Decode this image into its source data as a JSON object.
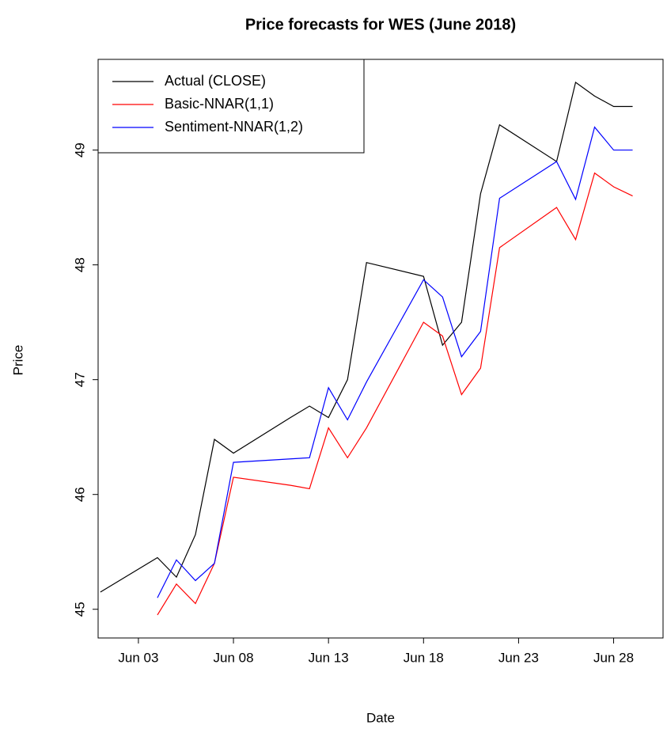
{
  "chart_data": {
    "type": "line",
    "title": "Price forecasts for WES (June 2018)",
    "x_label": "Date",
    "y_label": "Price",
    "x": [
      1,
      4,
      5,
      6,
      7,
      8,
      11,
      12,
      13,
      14,
      15,
      18,
      19,
      20,
      21,
      22,
      25,
      26,
      27,
      28,
      29
    ],
    "series": [
      {
        "name": "Actual (CLOSE)",
        "color": "#000000",
        "values": [
          45.15,
          45.45,
          45.28,
          45.65,
          46.48,
          46.36,
          46.67,
          46.77,
          46.67,
          47.0,
          48.02,
          47.9,
          47.3,
          47.5,
          48.62,
          49.22,
          48.9,
          49.59,
          49.47,
          49.38,
          49.38
        ]
      },
      {
        "name": "Basic-NNAR(1,1)",
        "color": "#ff0000",
        "values": [
          null,
          44.95,
          45.22,
          45.05,
          45.4,
          46.15,
          46.08,
          46.05,
          46.58,
          46.32,
          46.58,
          47.5,
          47.38,
          46.87,
          47.1,
          48.15,
          48.5,
          48.22,
          48.8,
          48.68,
          48.6
        ]
      },
      {
        "name": "Sentiment-NNAR(1,2)",
        "color": "#0000ff",
        "values": [
          null,
          45.1,
          45.43,
          45.25,
          45.4,
          46.28,
          46.31,
          46.32,
          46.93,
          46.65,
          46.98,
          47.87,
          47.72,
          47.2,
          47.42,
          48.58,
          48.9,
          48.57,
          49.2,
          49.0,
          49.0
        ]
      }
    ],
    "xlim": [
      0.88,
      30.6
    ],
    "xticks": [
      {
        "value": 3,
        "label": "Jun 03"
      },
      {
        "value": 8,
        "label": "Jun 08"
      },
      {
        "value": 13,
        "label": "Jun 13"
      },
      {
        "value": 18,
        "label": "Jun 18"
      },
      {
        "value": 23,
        "label": "Jun 23"
      },
      {
        "value": 28,
        "label": "Jun 28"
      }
    ],
    "ylim": [
      44.75,
      49.79
    ],
    "yticks": [
      45,
      46,
      47,
      48,
      49
    ],
    "legend": "top-left",
    "grid": false
  }
}
